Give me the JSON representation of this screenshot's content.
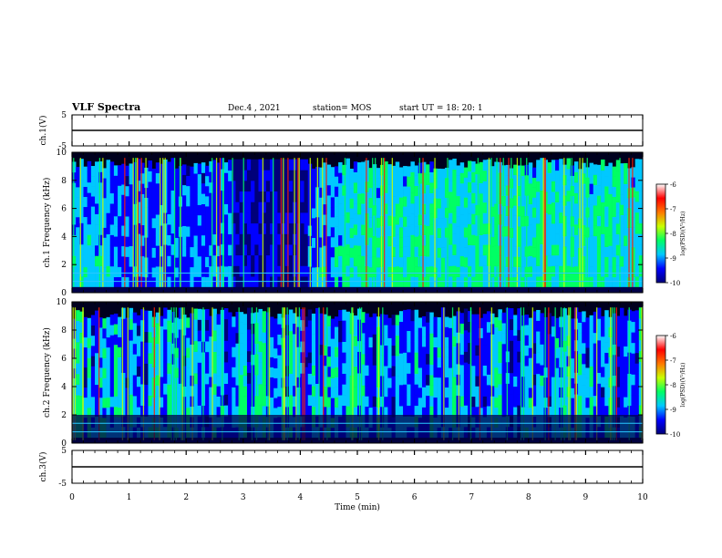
{
  "header": {
    "title": "VLF Spectra",
    "date": "Dec.4 , 2021",
    "station": "station= MOS",
    "start": "start UT = 18: 20: 1"
  },
  "chart_data": [
    {
      "type": "line",
      "ylabel": "ch.1(V)",
      "ylim": [
        -5,
        5
      ],
      "yticks": [
        "5",
        "-5"
      ],
      "series": [
        {
          "x": [
            0,
            10
          ],
          "y": [
            0,
            0
          ]
        }
      ]
    },
    {
      "type": "heatmap",
      "ylabel": "ch.1 Frequency (kHz)",
      "ylim": [
        0,
        10
      ],
      "yticks": [
        "0",
        "2",
        "4",
        "6",
        "8",
        "10"
      ],
      "xlim": [
        0,
        10
      ],
      "colorbar": {
        "label": "log(PSD)(V²/Hz)",
        "ticks": [
          "-6",
          "-7",
          "-8",
          "-9",
          "-10"
        ],
        "range": [
          -10,
          -6
        ]
      }
    },
    {
      "type": "heatmap",
      "ylabel": "ch.2 Frequency (kHz)",
      "ylim": [
        0,
        10
      ],
      "yticks": [
        "0",
        "2",
        "4",
        "6",
        "8",
        "10"
      ],
      "xlim": [
        0,
        10
      ],
      "colorbar": {
        "label": "log(PSD)(V²/Hz)",
        "ticks": [
          "-6",
          "-7",
          "-8",
          "-9",
          "-10"
        ],
        "range": [
          -10,
          -6
        ]
      }
    },
    {
      "type": "line",
      "ylabel": "ch.3(V)",
      "ylim": [
        -5,
        5
      ],
      "yticks": [
        "5",
        "-5"
      ],
      "series": [
        {
          "x": [
            0,
            10
          ],
          "y": [
            0,
            0
          ]
        }
      ]
    }
  ],
  "xaxis": {
    "label": "Time (min)",
    "ticks": [
      "0",
      "1",
      "2",
      "3",
      "4",
      "5",
      "6",
      "7",
      "8",
      "9",
      "10"
    ],
    "xlim": [
      0,
      10
    ]
  },
  "colors": {
    "colormap": [
      "#00007a",
      "#0000ff",
      "#00c8ff",
      "#00ff64",
      "#c8ff00",
      "#ff7800",
      "#ff0000",
      "#ffffff"
    ],
    "background": "#00001e"
  }
}
